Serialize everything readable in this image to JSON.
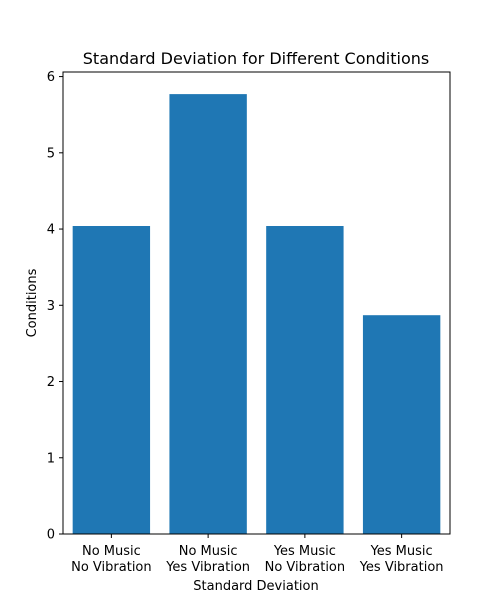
{
  "chart_data": {
    "type": "bar",
    "title": "Standard Deviation for Different Conditions",
    "xlabel": "Standard Deviation",
    "ylabel": "Conditions",
    "categories": [
      [
        "No Music",
        "No Vibration"
      ],
      [
        "No Music",
        "Yes Vibration"
      ],
      [
        "Yes Music",
        "No Vibration"
      ],
      [
        "Yes Music",
        "Yes Vibration"
      ]
    ],
    "values": [
      4.04,
      5.77,
      4.04,
      2.87
    ],
    "ylim": [
      0,
      6.06
    ],
    "yticks": [
      "0",
      "1",
      "2",
      "3",
      "4",
      "5",
      "6"
    ],
    "grid": false,
    "bar_color": "#1f77b4"
  }
}
